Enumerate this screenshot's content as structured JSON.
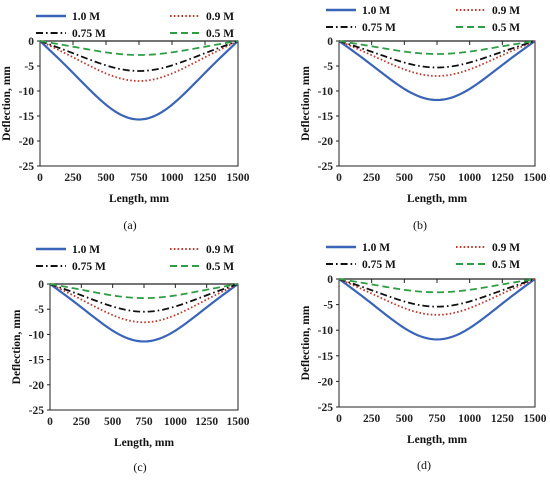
{
  "chart_data": [
    {
      "type": "line",
      "panel_label": "(a)",
      "xlabel": "Length, mm",
      "ylabel": "Deflection, mm",
      "xlim": [
        0,
        1500
      ],
      "ylim": [
        -25,
        0
      ],
      "xticks": [
        0,
        250,
        500,
        750,
        1000,
        1250,
        1500
      ],
      "yticks": [
        0,
        -5,
        -10,
        -15,
        -20,
        -25
      ],
      "legend_position": "top",
      "series": [
        {
          "name": "1.0 M",
          "x": [
            0,
            750,
            1500
          ],
          "y": [
            0,
            -15.7,
            0
          ],
          "color": "#3a64b8",
          "dash": "solid"
        },
        {
          "name": "0.9 M",
          "x": [
            0,
            750,
            1500
          ],
          "y": [
            0,
            -8.0,
            0
          ],
          "color": "#c0392b",
          "dash": "dotted"
        },
        {
          "name": "0.75 M",
          "x": [
            0,
            750,
            1500
          ],
          "y": [
            0,
            -6.0,
            0
          ],
          "color": "#111111",
          "dash": "dashdot"
        },
        {
          "name": "0.5 M",
          "x": [
            0,
            750,
            1500
          ],
          "y": [
            0,
            -2.8,
            0
          ],
          "color": "#2e9e44",
          "dash": "dashed"
        }
      ]
    },
    {
      "type": "line",
      "panel_label": "(b)",
      "xlabel": "Length, mm",
      "ylabel": "Deflection, mm",
      "xlim": [
        0,
        1500
      ],
      "ylim": [
        -25,
        0
      ],
      "xticks": [
        0,
        250,
        500,
        750,
        1000,
        1250,
        1500
      ],
      "yticks": [
        0,
        -5,
        -10,
        -15,
        -20,
        -25
      ],
      "legend_position": "top",
      "series": [
        {
          "name": "1.0 M",
          "x": [
            0,
            750,
            1500
          ],
          "y": [
            0,
            -11.8,
            0
          ],
          "color": "#3a64b8",
          "dash": "solid"
        },
        {
          "name": "0.9 M",
          "x": [
            0,
            750,
            1500
          ],
          "y": [
            0,
            -7.0,
            0
          ],
          "color": "#c0392b",
          "dash": "dotted"
        },
        {
          "name": "0.75 M",
          "x": [
            0,
            750,
            1500
          ],
          "y": [
            0,
            -5.3,
            0
          ],
          "color": "#111111",
          "dash": "dashdot"
        },
        {
          "name": "0.5 M",
          "x": [
            0,
            750,
            1500
          ],
          "y": [
            0,
            -2.6,
            0
          ],
          "color": "#2e9e44",
          "dash": "dashed"
        }
      ]
    },
    {
      "type": "line",
      "panel_label": "(c)",
      "xlabel": "Length, mm",
      "ylabel": "Deflection, mm",
      "xlim": [
        0,
        1500
      ],
      "ylim": [
        -25,
        0
      ],
      "xticks": [
        0,
        250,
        500,
        750,
        1000,
        1250,
        1500
      ],
      "yticks": [
        0,
        -5,
        -10,
        -15,
        -20,
        -25
      ],
      "legend_position": "top",
      "series": [
        {
          "name": "1.0 M",
          "x": [
            0,
            750,
            1500
          ],
          "y": [
            0,
            -11.4,
            0
          ],
          "color": "#3a64b8",
          "dash": "solid"
        },
        {
          "name": "0.9 M",
          "x": [
            0,
            750,
            1500
          ],
          "y": [
            0,
            -7.6,
            0
          ],
          "color": "#c0392b",
          "dash": "dotted"
        },
        {
          "name": "0.75 M",
          "x": [
            0,
            750,
            1500
          ],
          "y": [
            0,
            -5.5,
            0
          ],
          "color": "#111111",
          "dash": "dashdot"
        },
        {
          "name": "0.5 M",
          "x": [
            0,
            750,
            1500
          ],
          "y": [
            0,
            -2.8,
            0
          ],
          "color": "#2e9e44",
          "dash": "dashed"
        }
      ]
    },
    {
      "type": "line",
      "panel_label": "(d)",
      "xlabel": "Length, mm",
      "ylabel": "Deflection, mm",
      "xlim": [
        0,
        1500
      ],
      "ylim": [
        -25,
        0
      ],
      "xticks": [
        0,
        250,
        500,
        750,
        1000,
        1250,
        1500
      ],
      "yticks": [
        0,
        -5,
        -10,
        -15,
        -20,
        -25
      ],
      "legend_position": "top",
      "series": [
        {
          "name": "1.0 M",
          "x": [
            0,
            750,
            1500
          ],
          "y": [
            0,
            -11.8,
            0
          ],
          "color": "#3a64b8",
          "dash": "solid"
        },
        {
          "name": "0.9 M",
          "x": [
            0,
            750,
            1500
          ],
          "y": [
            0,
            -7.0,
            0
          ],
          "color": "#c0392b",
          "dash": "dotted"
        },
        {
          "name": "0.75 M",
          "x": [
            0,
            750,
            1500
          ],
          "y": [
            0,
            -5.4,
            0
          ],
          "color": "#111111",
          "dash": "dashdot"
        },
        {
          "name": "0.5 M",
          "x": [
            0,
            750,
            1500
          ],
          "y": [
            0,
            -2.6,
            0
          ],
          "color": "#2e9e44",
          "dash": "dashed"
        }
      ]
    }
  ]
}
